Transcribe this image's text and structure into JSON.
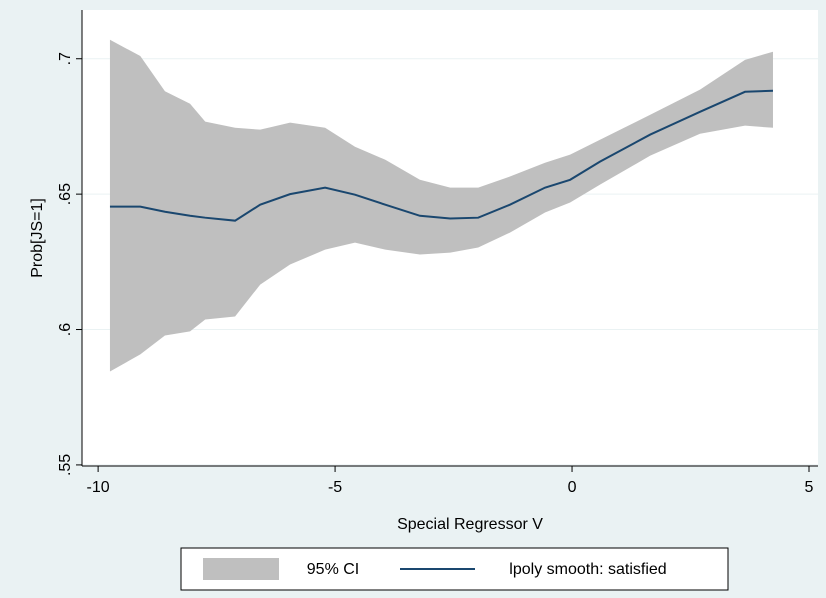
{
  "chart_data": {
    "type": "band-line",
    "x_label": "Special Regressor V",
    "y_label": "Prob[JS=1]",
    "x": [
      -9.75,
      -9.11,
      -8.59,
      -8.06,
      -7.74,
      -7.11,
      -6.58,
      -5.95,
      -5.21,
      -4.58,
      -3.94,
      -3.21,
      -2.57,
      -1.98,
      -1.31,
      -0.57,
      -0.04,
      0.59,
      1.65,
      2.7,
      3.65,
      4.24
    ],
    "series": [
      {
        "name": "95% CI",
        "color": "#bfbfbf",
        "upper": [
          0.707,
          0.701,
          0.688,
          0.6834,
          0.6768,
          0.6745,
          0.6738,
          0.6764,
          0.6745,
          0.6675,
          0.6627,
          0.6553,
          0.6524,
          0.6524,
          0.6565,
          0.6616,
          0.6646,
          0.6701,
          0.6793,
          0.6886,
          0.6996,
          0.7026
        ],
        "lower": [
          0.5845,
          0.5908,
          0.5978,
          0.5993,
          0.6037,
          0.6048,
          0.6166,
          0.624,
          0.6295,
          0.6321,
          0.6295,
          0.6277,
          0.6284,
          0.6303,
          0.6358,
          0.6432,
          0.6469,
          0.6535,
          0.6642,
          0.6723,
          0.6753,
          0.6745
        ]
      },
      {
        "name": "lpoly smooth: satisfied",
        "color": "#1a476f",
        "values": [
          0.6454,
          0.6454,
          0.6435,
          0.642,
          0.6413,
          0.6402,
          0.6461,
          0.65,
          0.6524,
          0.6498,
          0.6461,
          0.642,
          0.641,
          0.6413,
          0.6461,
          0.6524,
          0.6553,
          0.662,
          0.672,
          0.6804,
          0.6878,
          0.6882
        ]
      }
    ],
    "xlim": [
      -10.34,
      5.19
    ],
    "xticks": [
      -10,
      -5,
      0,
      5
    ],
    "ylim": [
      0.5496,
      0.718
    ],
    "yticks": [
      {
        "value": 0.55,
        "label": ".55"
      },
      {
        "value": 0.6,
        "label": ".6"
      },
      {
        "value": 0.65,
        "label": ".65"
      },
      {
        "value": 0.7,
        "label": ".7"
      }
    ],
    "grid": true,
    "legend": "bottom"
  }
}
